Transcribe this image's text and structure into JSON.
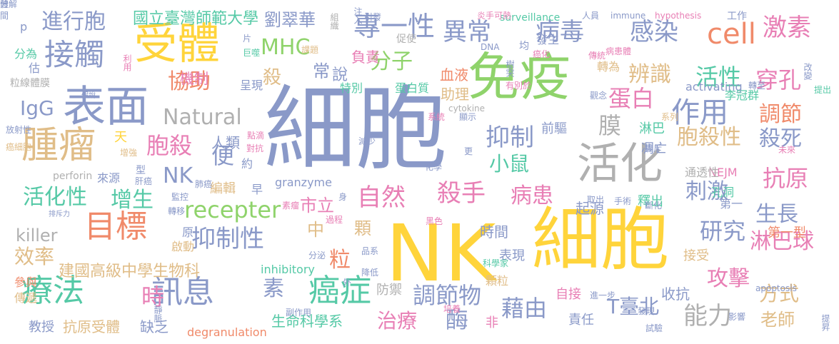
{
  "palette": {
    "blue": "#8a99c8",
    "green": "#8fd36b",
    "yellow": "#ffd43b",
    "orange": "#f08a6a",
    "tan": "#e0bd88",
    "pink": "#e87fb5",
    "teal": "#55c9a6",
    "gray": "#b0b0b0"
  },
  "words": [
    {
      "text": "細胞",
      "color": "blue"
    },
    {
      "text": "NK",
      "color": "yellow"
    },
    {
      "text": "細胞",
      "color": "yellow"
    },
    {
      "text": "免疫",
      "color": "green"
    },
    {
      "text": "受體",
      "color": "yellow"
    },
    {
      "text": "表面",
      "color": "blue"
    },
    {
      "text": "活化",
      "color": "gray"
    },
    {
      "text": "腫瘤",
      "color": "tan"
    },
    {
      "text": "接觸",
      "color": "blue"
    },
    {
      "text": "目標",
      "color": "orange"
    },
    {
      "text": "療法",
      "color": "teal"
    },
    {
      "text": "訊息",
      "color": "blue"
    },
    {
      "text": "癌症",
      "color": "teal"
    },
    {
      "text": "cell",
      "color": "orange"
    },
    {
      "text": "作用",
      "color": "blue"
    },
    {
      "text": "專一性",
      "color": "blue"
    },
    {
      "text": "異常",
      "color": "blue"
    },
    {
      "text": "病毒",
      "color": "blue"
    },
    {
      "text": "感染",
      "color": "blue"
    },
    {
      "text": "激素",
      "color": "pink"
    },
    {
      "text": "進行胞",
      "color": "blue"
    },
    {
      "text": "國立臺灣師範大學",
      "color": "teal"
    },
    {
      "text": "劉翠華",
      "color": "blue"
    },
    {
      "text": "MHC",
      "color": "green"
    },
    {
      "text": "分子",
      "color": "green"
    },
    {
      "text": "抑制",
      "color": "blue"
    },
    {
      "text": "自然",
      "color": "pink"
    },
    {
      "text": "殺手",
      "color": "pink"
    },
    {
      "text": "病患",
      "color": "pink"
    },
    {
      "text": "抗原",
      "color": "pink"
    },
    {
      "text": "抑制性",
      "color": "blue"
    },
    {
      "text": "recepter",
      "color": "green"
    },
    {
      "text": "Natural",
      "color": "gray"
    },
    {
      "text": "killer",
      "color": "gray"
    },
    {
      "text": "IgG",
      "color": "blue"
    },
    {
      "text": "NK",
      "color": "blue"
    },
    {
      "text": "胞殺",
      "color": "pink"
    },
    {
      "text": "協助",
      "color": "orange"
    },
    {
      "text": "活化性",
      "color": "teal"
    },
    {
      "text": "增生",
      "color": "teal"
    },
    {
      "text": "蛋白",
      "color": "pink"
    },
    {
      "text": "辨識",
      "color": "tan"
    },
    {
      "text": "活性",
      "color": "teal"
    },
    {
      "text": "穿孔",
      "color": "pink"
    },
    {
      "text": "調節",
      "color": "orange"
    },
    {
      "text": "殺死",
      "color": "blue"
    },
    {
      "text": "胞殺性",
      "color": "tan"
    },
    {
      "text": "小鼠",
      "color": "teal"
    },
    {
      "text": "膜",
      "color": "gray"
    },
    {
      "text": "刺激",
      "color": "blue"
    },
    {
      "text": "淋巴球",
      "color": "pink"
    },
    {
      "text": "研究",
      "color": "blue"
    },
    {
      "text": "生長",
      "color": "blue"
    },
    {
      "text": "攻擊",
      "color": "pink"
    },
    {
      "text": "方式",
      "color": "tan"
    },
    {
      "text": "能力",
      "color": "gray"
    },
    {
      "text": "藉由",
      "color": "blue"
    },
    {
      "text": "調節物",
      "color": "blue"
    },
    {
      "text": "治療",
      "color": "pink"
    },
    {
      "text": "酶",
      "color": "blue"
    },
    {
      "text": "時",
      "color": "pink"
    },
    {
      "text": "素",
      "color": "blue"
    },
    {
      "text": "粒",
      "color": "orange"
    },
    {
      "text": "效率",
      "color": "tan"
    },
    {
      "text": "建國高級中學生物科",
      "color": "tan"
    },
    {
      "text": "T臺北",
      "color": "blue"
    },
    {
      "text": "老師",
      "color": "tan"
    },
    {
      "text": "第一型",
      "color": "orange"
    },
    {
      "text": "生命科學系",
      "color": "teal"
    },
    {
      "text": "degranulation",
      "color": "orange"
    },
    {
      "text": "抗原受體",
      "color": "tan"
    },
    {
      "text": "缺乏",
      "color": "blue"
    },
    {
      "text": "教授",
      "color": "blue"
    },
    {
      "text": "便",
      "color": "blue"
    },
    {
      "text": "殺",
      "color": "tan"
    },
    {
      "text": "常",
      "color": "blue"
    },
    {
      "text": "說",
      "color": "blue"
    },
    {
      "text": "血液",
      "color": "orange"
    },
    {
      "text": "負責",
      "color": "pink"
    },
    {
      "text": "機制",
      "color": "pink"
    },
    {
      "text": "特別",
      "color": "teal"
    },
    {
      "text": "助理",
      "color": "tan"
    },
    {
      "text": "蛋白質",
      "color": "teal"
    },
    {
      "text": "activating",
      "color": "blue"
    },
    {
      "text": "李冠群",
      "color": "teal"
    },
    {
      "text": "轉為",
      "color": "tan"
    },
    {
      "text": "前驅",
      "color": "blue"
    },
    {
      "text": "淋巴",
      "color": "teal"
    },
    {
      "text": "凋亡",
      "color": "blue"
    },
    {
      "text": "人類",
      "color": "blue"
    },
    {
      "text": "約",
      "color": "blue"
    },
    {
      "text": "編輯",
      "color": "tan"
    },
    {
      "text": "早",
      "color": "blue"
    },
    {
      "text": "市立",
      "color": "pink"
    },
    {
      "text": "中",
      "color": "tan"
    },
    {
      "text": "顆",
      "color": "tan"
    },
    {
      "text": "時間",
      "color": "blue"
    },
    {
      "text": "表現",
      "color": "blue"
    },
    {
      "text": "接受",
      "color": "tan"
    },
    {
      "text": "收抗",
      "color": "blue"
    },
    {
      "text": "自接",
      "color": "pink"
    },
    {
      "text": "責任",
      "color": "blue"
    },
    {
      "text": "顆粒",
      "color": "tan"
    },
    {
      "text": "inhibitory",
      "color": "teal"
    },
    {
      "text": "防禦",
      "color": "gray"
    },
    {
      "text": "NEJM",
      "color": "pink"
    },
    {
      "text": "孔洞",
      "color": "teal"
    },
    {
      "text": "釋出",
      "color": "teal"
    },
    {
      "text": "起源",
      "color": "blue"
    },
    {
      "text": "通透性",
      "color": "gray"
    },
    {
      "text": "第一",
      "color": "blue"
    },
    {
      "text": "呈現",
      "color": "blue"
    },
    {
      "text": "perforin",
      "color": "gray"
    },
    {
      "text": "granzyme",
      "color": "blue"
    },
    {
      "text": "來源",
      "color": "blue"
    },
    {
      "text": "型",
      "color": "blue"
    },
    {
      "text": "天",
      "color": "yellow"
    },
    {
      "text": "分為",
      "color": "teal"
    },
    {
      "text": "估",
      "color": "blue"
    },
    {
      "text": "p",
      "color": "blue"
    },
    {
      "text": "粒線體膜",
      "color": "gray"
    },
    {
      "text": "參與",
      "color": "orange"
    },
    {
      "text": "傳遞",
      "color": "tan"
    },
    {
      "text": "surveillance",
      "color": "teal"
    },
    {
      "text": "immune",
      "color": "blue"
    },
    {
      "text": "hypothesis",
      "color": "pink"
    },
    {
      "text": "工作",
      "color": "blue"
    },
    {
      "text": "cytokine",
      "color": "gray"
    },
    {
      "text": "apoptosis",
      "color": "blue"
    },
    {
      "text": "發生",
      "color": "blue"
    },
    {
      "text": "均",
      "color": "blue"
    },
    {
      "text": "促使",
      "color": "gray"
    },
    {
      "text": "引發",
      "color": "blue"
    },
    {
      "text": "組織",
      "color": "gray"
    },
    {
      "text": "人員",
      "color": "blue"
    },
    {
      "text": "炎手可熱",
      "color": "pink"
    },
    {
      "text": "轉至",
      "color": "blue"
    },
    {
      "text": "提出",
      "color": "teal"
    },
    {
      "text": "改變",
      "color": "blue"
    },
    {
      "text": "系列",
      "color": "tan"
    },
    {
      "text": "原",
      "color": "blue"
    },
    {
      "text": "啟動",
      "color": "tan"
    },
    {
      "text": "分泌",
      "color": "blue"
    },
    {
      "text": "品系",
      "color": "blue"
    },
    {
      "text": "科學家",
      "color": "teal"
    },
    {
      "text": "降低",
      "color": "blue"
    },
    {
      "text": "非",
      "color": "pink"
    },
    {
      "text": "發現",
      "color": "blue"
    },
    {
      "text": "試驗",
      "color": "blue"
    },
    {
      "text": "影響",
      "color": "blue"
    },
    {
      "text": "提昇",
      "color": "blue"
    },
    {
      "text": "副作用",
      "color": "blue"
    },
    {
      "text": "靜脈",
      "color": "blue"
    },
    {
      "text": "進一步",
      "color": "blue"
    },
    {
      "text": "培養",
      "color": "pink"
    },
    {
      "text": "手術",
      "color": "blue"
    },
    {
      "text": "斷化",
      "color": "blue"
    },
    {
      "text": "取出",
      "color": "blue"
    },
    {
      "text": "監控",
      "color": "blue"
    },
    {
      "text": "轉移",
      "color": "blue"
    },
    {
      "text": "排斥力",
      "color": "blue"
    },
    {
      "text": "減少",
      "color": "blue"
    },
    {
      "text": "化學",
      "color": "blue"
    },
    {
      "text": "素瘤",
      "color": "pink"
    },
    {
      "text": "過程",
      "color": "pink"
    },
    {
      "text": "黑色",
      "color": "pink"
    },
    {
      "text": "系統",
      "color": "pink"
    },
    {
      "text": "顯示",
      "color": "blue"
    },
    {
      "text": "觀念",
      "color": "blue"
    },
    {
      "text": "點滴",
      "color": "pink"
    },
    {
      "text": "對抗",
      "color": "pink"
    },
    {
      "text": "增強",
      "color": "tan"
    },
    {
      "text": "肝癌",
      "color": "blue"
    },
    {
      "text": "肺癌",
      "color": "blue"
    },
    {
      "text": "排斥",
      "color": "blue"
    },
    {
      "text": "未來",
      "color": "pink"
    },
    {
      "text": "假說",
      "color": "blue"
    },
    {
      "text": "利用",
      "color": "pink"
    },
    {
      "text": "巨噬",
      "color": "teal"
    },
    {
      "text": "課題",
      "color": "tan"
    },
    {
      "text": "片",
      "color": "blue"
    },
    {
      "text": "注入",
      "color": "blue"
    },
    {
      "text": "DNA",
      "color": "blue"
    },
    {
      "text": "癌化",
      "color": "pink"
    },
    {
      "text": "樹突",
      "color": "blue"
    },
    {
      "text": "有別於",
      "color": "pink"
    },
    {
      "text": "傳統",
      "color": "pink"
    },
    {
      "text": "病患體",
      "color": "pink"
    },
    {
      "text": "間",
      "color": "blue"
    },
    {
      "text": "放射性",
      "color": "blue"
    },
    {
      "text": "癌細胞",
      "color": "tan"
    },
    {
      "text": "身",
      "color": "blue"
    },
    {
      "text": "外",
      "color": "blue"
    },
    {
      "text": "更",
      "color": "blue"
    },
    {
      "text": "分解",
      "color": "blue"
    },
    {
      "text": "體",
      "color": "blue"
    }
  ]
}
